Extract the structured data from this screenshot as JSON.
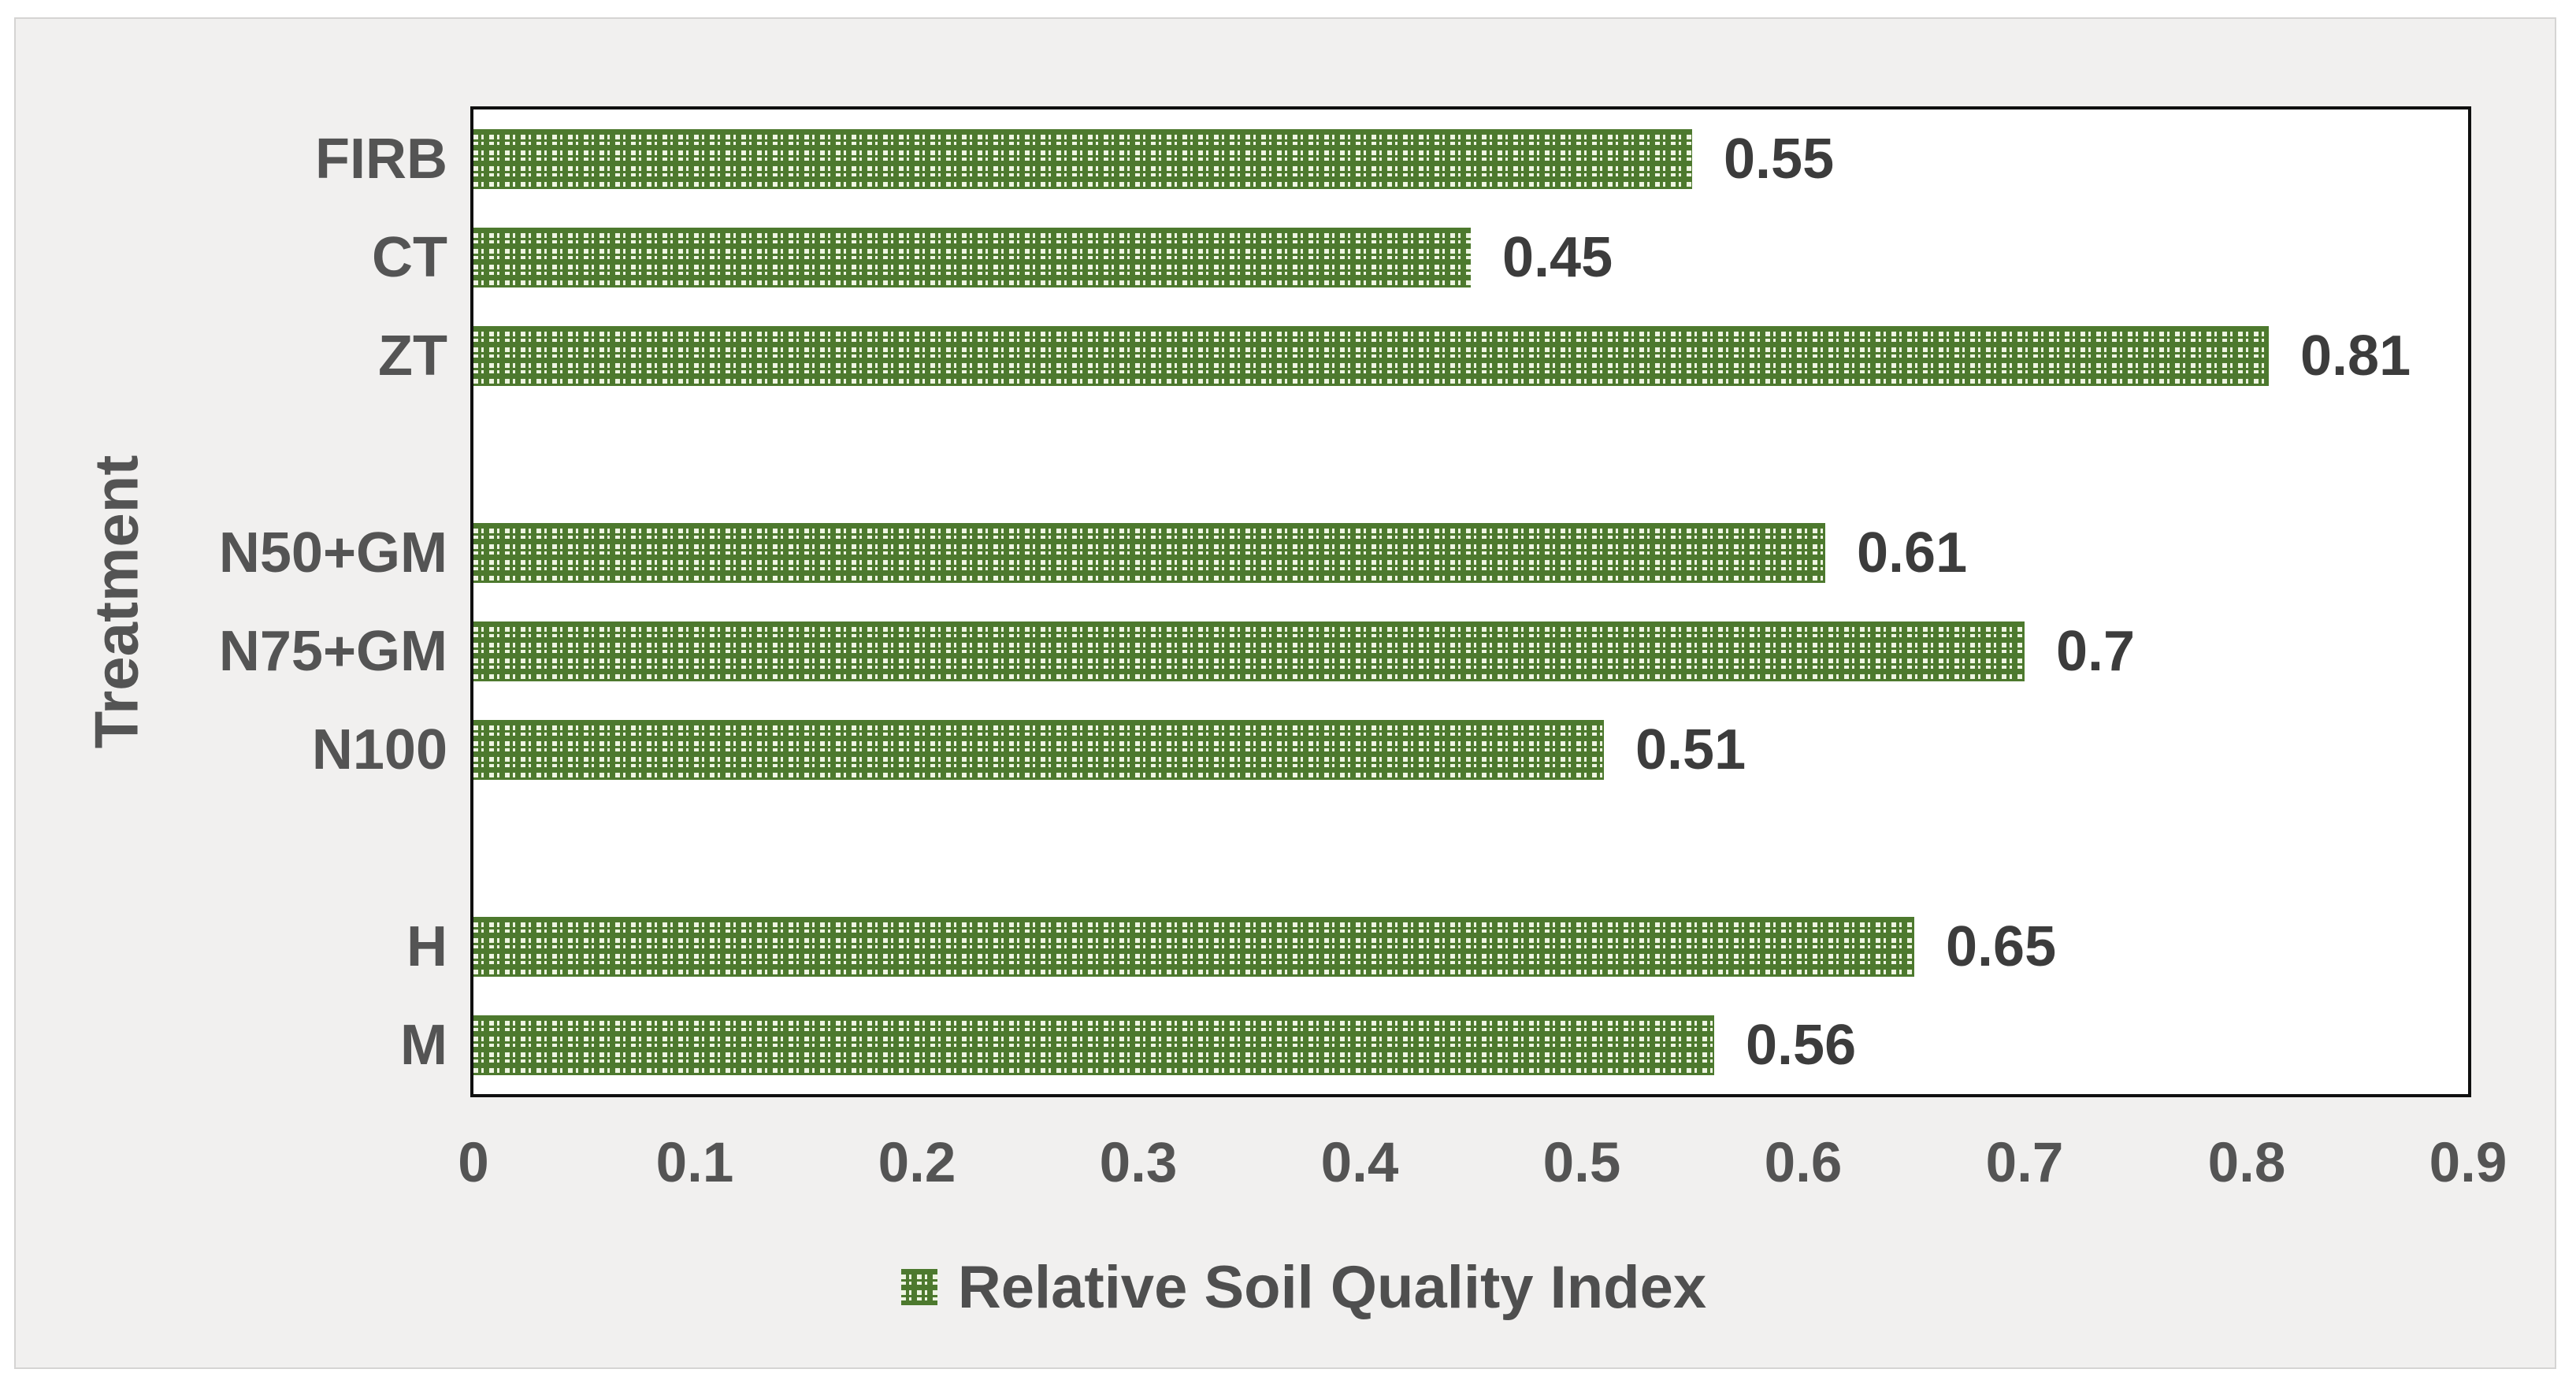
{
  "page": {
    "background": "#ffffff",
    "panel_background": "#f1f0ef",
    "panel_border_color": "#d5d4d3",
    "plot_background": "#ffffff",
    "plot_border_color": "#101010",
    "text_color": "#545454",
    "value_label_color": "#3c3c3c"
  },
  "chart_data": {
    "type": "bar",
    "orientation": "horizontal",
    "title": "",
    "xlabel": "",
    "ylabel": "Treatment",
    "legend": {
      "label": "Relative Soil Quality Index",
      "position": "bottom",
      "swatch": "green-cross-stitch-pattern"
    },
    "xlim": [
      0,
      0.9
    ],
    "x_ticks": [
      "0",
      "0.1",
      "0.2",
      "0.3",
      "0.4",
      "0.5",
      "0.6",
      "0.7",
      "0.8",
      "0.9"
    ],
    "grid": false,
    "bar_fill_color": "#4d792e",
    "bar_pattern_light_color": "#eef5e1",
    "slot_count": 10,
    "categories": [
      "FIRB",
      "CT",
      "ZT",
      "",
      "N50+GM",
      "N75+GM",
      "N100",
      "",
      "H",
      "M"
    ],
    "rows": [
      {
        "label": "FIRB",
        "value": 0.55,
        "display": "0.55",
        "slot": 0
      },
      {
        "label": "CT",
        "value": 0.45,
        "display": "0.45",
        "slot": 1
      },
      {
        "label": "ZT",
        "value": 0.81,
        "display": "0.81",
        "slot": 2
      },
      {
        "label": "N50+GM",
        "value": 0.61,
        "display": "0.61",
        "slot": 4
      },
      {
        "label": "N75+GM",
        "value": 0.7,
        "display": "0.7",
        "slot": 5
      },
      {
        "label": "N100",
        "value": 0.51,
        "display": "0.51",
        "slot": 6
      },
      {
        "label": "H",
        "value": 0.65,
        "display": "0.65",
        "slot": 8
      },
      {
        "label": "M",
        "value": 0.56,
        "display": "0.56",
        "slot": 9
      }
    ]
  }
}
